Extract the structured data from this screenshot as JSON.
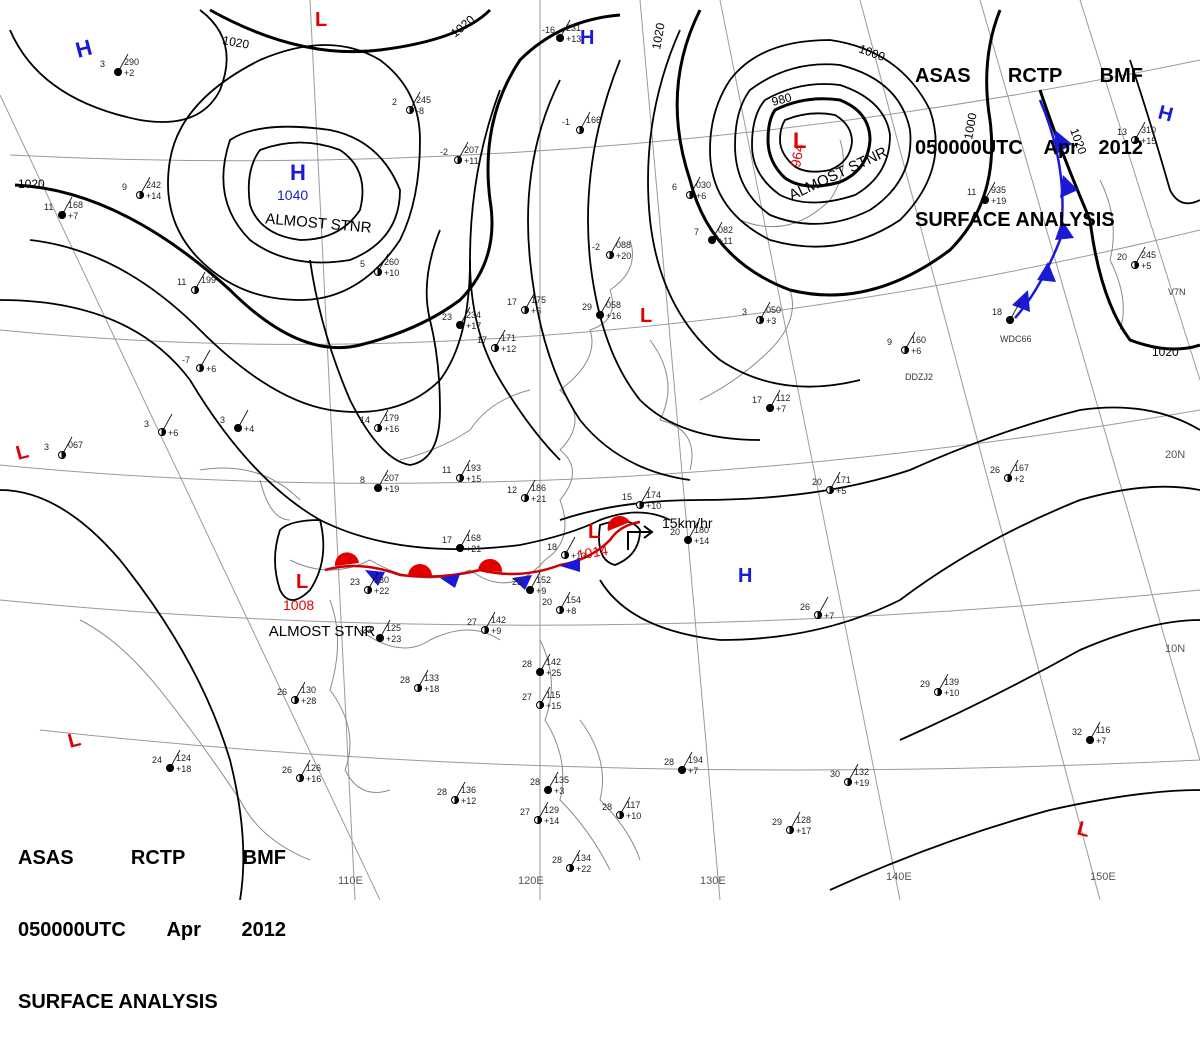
{
  "header": {
    "agency": "ASAS",
    "station": "RCTP",
    "code": "BMF",
    "time": "050000UTC",
    "month": "Apr",
    "year": "2012",
    "product": "SURFACE ANALYSIS"
  },
  "colors": {
    "high": "#1a1ad6",
    "low": "#e00000",
    "isobar": "#000000",
    "grid": "#9a9a9a",
    "coast": "#8a8a8a"
  },
  "isobar_labels": [
    "1020",
    "1020",
    "1020",
    "1020",
    "1000",
    "980",
    "1000",
    "1020",
    "1020",
    "1020"
  ],
  "pressure_centers": [
    {
      "type": "H",
      "value": "",
      "note": ""
    },
    {
      "type": "H",
      "value": "",
      "note": ""
    },
    {
      "type": "H",
      "value": "1040",
      "note": "ALMOST STNR"
    },
    {
      "type": "L",
      "value": "964",
      "note": "ALMOST STNR"
    },
    {
      "type": "H",
      "value": "",
      "note": ""
    },
    {
      "type": "L",
      "value": "",
      "note": ""
    },
    {
      "type": "L",
      "value": "",
      "note": ""
    },
    {
      "type": "L",
      "value": "1008",
      "note": "ALMOST STNR"
    },
    {
      "type": "L",
      "value": "1014",
      "note": ""
    },
    {
      "type": "H",
      "value": "",
      "note": ""
    },
    {
      "type": "L",
      "value": "",
      "note": ""
    },
    {
      "type": "L",
      "value": "",
      "note": ""
    },
    {
      "type": "L",
      "value": "",
      "note": ""
    }
  ],
  "motion": "15km/hr",
  "longitude_labels": [
    "110E",
    "120E",
    "130E",
    "140E",
    "150E"
  ],
  "latitude_labels": [
    "20N",
    "10N"
  ],
  "station_ids": [
    "WDC66",
    "DDZJ2",
    "V7N"
  ],
  "station_plots": [
    {
      "t": "3",
      "p": "290",
      "d": "+2"
    },
    {
      "t": "2",
      "p": "245",
      "d": "-8"
    },
    {
      "t": "-2",
      "p": "207",
      "d": "+11"
    },
    {
      "t": "-16",
      "p": "231",
      "d": "+13"
    },
    {
      "t": "-1",
      "p": "166",
      "d": ""
    },
    {
      "t": "9",
      "p": "242",
      "d": "+14"
    },
    {
      "t": "11",
      "p": "168",
      "d": "+7"
    },
    {
      "t": "11",
      "p": "199",
      "d": ""
    },
    {
      "t": "5",
      "p": "260",
      "d": "+10"
    },
    {
      "t": "23",
      "p": "234",
      "d": "+17"
    },
    {
      "t": "17",
      "p": "175",
      "d": "+6"
    },
    {
      "t": "17",
      "p": "171",
      "d": "+12"
    },
    {
      "t": "29",
      "p": "058",
      "d": "+16"
    },
    {
      "t": "-2",
      "p": "088",
      "d": "+20"
    },
    {
      "t": "6",
      "p": "030",
      "d": "+6"
    },
    {
      "t": "7",
      "p": "082",
      "d": "+11"
    },
    {
      "t": "3",
      "p": "050",
      "d": "+3"
    },
    {
      "t": "9",
      "p": "160",
      "d": "+6"
    },
    {
      "t": "11",
      "p": "935",
      "d": "+19"
    },
    {
      "t": "13",
      "p": "310",
      "d": "+15"
    },
    {
      "t": "20",
      "p": "245",
      "d": "+5"
    },
    {
      "t": "18",
      "p": "",
      "d": ""
    },
    {
      "t": "14",
      "p": "179",
      "d": "+16"
    },
    {
      "t": "11",
      "p": "193",
      "d": "+15"
    },
    {
      "t": "8",
      "p": "207",
      "d": "+19"
    },
    {
      "t": "12",
      "p": "186",
      "d": "+21"
    },
    {
      "t": "15",
      "p": "174",
      "d": "+10"
    },
    {
      "t": "17",
      "p": "112",
      "d": "+7"
    },
    {
      "t": "20",
      "p": "171",
      "d": "+5"
    },
    {
      "t": "26",
      "p": "167",
      "d": "+2"
    },
    {
      "t": "17",
      "p": "168",
      "d": "+21"
    },
    {
      "t": "18",
      "p": "",
      "d": "+13"
    },
    {
      "t": "23",
      "p": "130",
      "d": "+22"
    },
    {
      "t": "23",
      "p": "152",
      "d": "+9"
    },
    {
      "t": "20",
      "p": "154",
      "d": "+8"
    },
    {
      "t": "27",
      "p": "142",
      "d": "+9"
    },
    {
      "t": "23",
      "p": "125",
      "d": "+23"
    },
    {
      "t": "28",
      "p": "133",
      "d": "+18"
    },
    {
      "t": "26",
      "p": "130",
      "d": "+28"
    },
    {
      "t": "28",
      "p": "142",
      "d": "+25"
    },
    {
      "t": "27",
      "p": "115",
      "d": "+15"
    },
    {
      "t": "26",
      "p": "126",
      "d": "+16"
    },
    {
      "t": "24",
      "p": "124",
      "d": "+18"
    },
    {
      "t": "28",
      "p": "136",
      "d": "+12"
    },
    {
      "t": "27",
      "p": "129",
      "d": "+14"
    },
    {
      "t": "28",
      "p": "135",
      "d": "+3"
    },
    {
      "t": "28",
      "p": "117",
      "d": "+10"
    },
    {
      "t": "28",
      "p": "134",
      "d": "+22"
    },
    {
      "t": "28",
      "p": "194",
      "d": "+7"
    },
    {
      "t": "30",
      "p": "132",
      "d": "+19"
    },
    {
      "t": "29",
      "p": "128",
      "d": "+17"
    },
    {
      "t": "32",
      "p": "116",
      "d": "+7"
    },
    {
      "t": "29",
      "p": "139",
      "d": "+10"
    },
    {
      "t": "26",
      "p": "",
      "d": "+7"
    },
    {
      "t": "20",
      "p": "180",
      "d": "+14"
    },
    {
      "t": "3",
      "p": "067",
      "d": ""
    },
    {
      "t": "-7",
      "p": "",
      "d": "+6"
    },
    {
      "t": "3",
      "p": "",
      "d": "+4"
    },
    {
      "t": "3",
      "p": "",
      "d": "+6"
    }
  ]
}
